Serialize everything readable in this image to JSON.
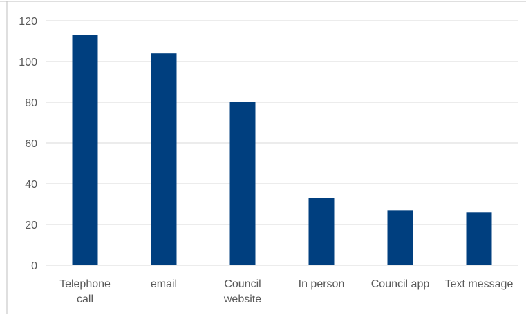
{
  "chart_data": {
    "type": "bar",
    "title": "",
    "xlabel": "",
    "ylabel": "",
    "categories": [
      [
        "Telephone",
        "call"
      ],
      [
        "email"
      ],
      [
        "Council",
        "website"
      ],
      [
        "In person"
      ],
      [
        "Council app"
      ],
      [
        "Text message"
      ]
    ],
    "values": [
      113,
      104,
      80,
      33,
      27,
      26
    ],
    "ylim": [
      0,
      120
    ],
    "yticks": [
      0,
      20,
      40,
      60,
      80,
      100,
      120
    ],
    "grid": true,
    "legend": "none",
    "bar_color": "#003f7f",
    "grid_color": "#d9d9d9",
    "text_color": "#595959"
  }
}
